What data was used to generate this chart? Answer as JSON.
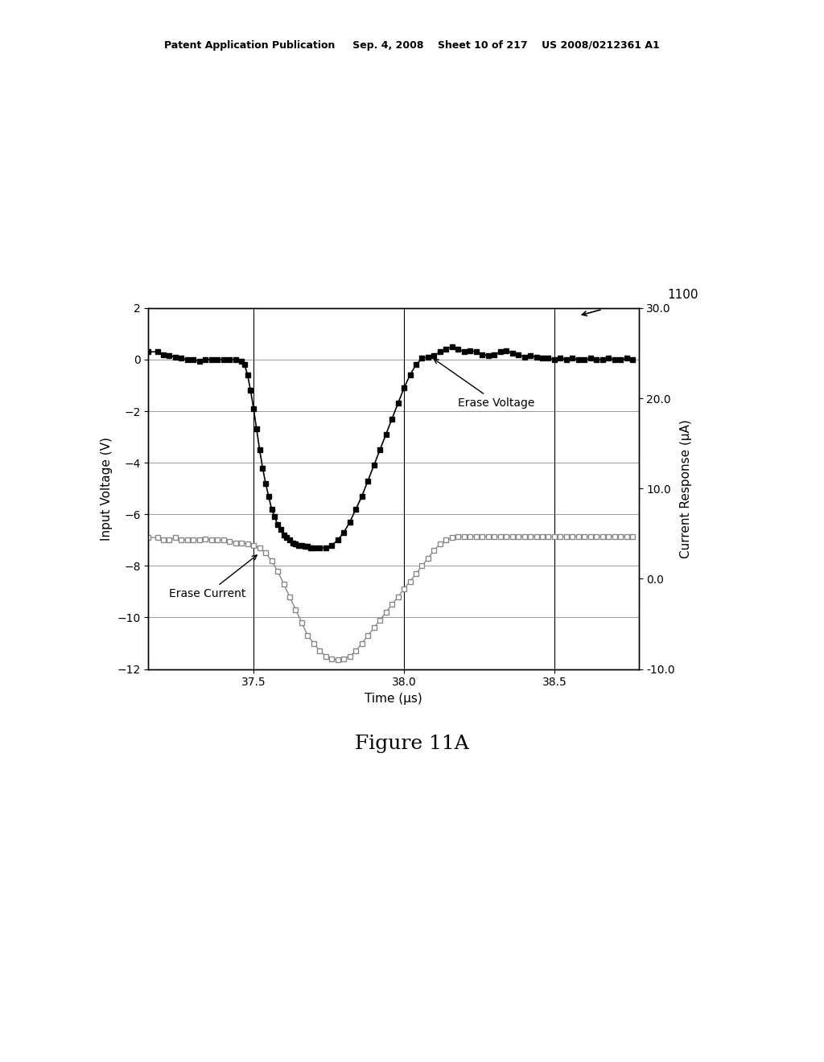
{
  "title_header": "Patent Application Publication     Sep. 4, 2008    Sheet 10 of 217    US 2008/0212361 A1",
  "figure_label": "Figure 11A",
  "ref_number": "1100",
  "xlabel": "Time (μs)",
  "ylabel_left": "Input Voltage (V)",
  "ylabel_right": "Current Response (μA)",
  "xlim": [
    37.15,
    38.78
  ],
  "ylim_left": [
    -12,
    2
  ],
  "ylim_right": [
    -10.0,
    30.0
  ],
  "xticks": [
    37.5,
    38.0,
    38.5
  ],
  "yticks_left": [
    -12,
    -10,
    -8,
    -6,
    -4,
    -2,
    0,
    2
  ],
  "yticks_right": [
    -10.0,
    0.0,
    10.0,
    20.0,
    30.0
  ],
  "annotation_erase_voltage": "Erase Voltage",
  "annotation_erase_current": "Erase Current",
  "bg_color": "#ffffff",
  "line_color_voltage": "#000000",
  "line_color_current": "#888888",
  "grid_color": "#999999",
  "vline_color": "#000000",
  "voltage_x": [
    37.15,
    37.18,
    37.2,
    37.22,
    37.24,
    37.26,
    37.28,
    37.3,
    37.32,
    37.34,
    37.36,
    37.38,
    37.4,
    37.42,
    37.44,
    37.46,
    37.47,
    37.48,
    37.49,
    37.5,
    37.51,
    37.52,
    37.53,
    37.54,
    37.55,
    37.56,
    37.57,
    37.58,
    37.59,
    37.6,
    37.61,
    37.62,
    37.63,
    37.64,
    37.65,
    37.66,
    37.67,
    37.68,
    37.69,
    37.7,
    37.72,
    37.74,
    37.76,
    37.78,
    37.8,
    37.82,
    37.84,
    37.86,
    37.88,
    37.9,
    37.92,
    37.94,
    37.96,
    37.98,
    38.0,
    38.02,
    38.04,
    38.06,
    38.08,
    38.1,
    38.12,
    38.14,
    38.16,
    38.18,
    38.2,
    38.22,
    38.24,
    38.26,
    38.28,
    38.3,
    38.32,
    38.34,
    38.36,
    38.38,
    38.4,
    38.42,
    38.44,
    38.46,
    38.48,
    38.5,
    38.52,
    38.54,
    38.56,
    38.58,
    38.6,
    38.62,
    38.64,
    38.66,
    38.68,
    38.7,
    38.72,
    38.74,
    38.76
  ],
  "voltage_y": [
    0.3,
    0.3,
    0.2,
    0.15,
    0.1,
    0.05,
    0.0,
    0.0,
    -0.05,
    0.0,
    0.0,
    0.0,
    0.0,
    0.0,
    0.0,
    -0.05,
    -0.2,
    -0.6,
    -1.2,
    -1.9,
    -2.7,
    -3.5,
    -4.2,
    -4.8,
    -5.3,
    -5.8,
    -6.1,
    -6.4,
    -6.6,
    -6.8,
    -6.9,
    -7.0,
    -7.1,
    -7.15,
    -7.2,
    -7.2,
    -7.25,
    -7.25,
    -7.3,
    -7.3,
    -7.3,
    -7.3,
    -7.2,
    -7.0,
    -6.7,
    -6.3,
    -5.8,
    -5.3,
    -4.7,
    -4.1,
    -3.5,
    -2.9,
    -2.3,
    -1.7,
    -1.1,
    -0.6,
    -0.2,
    0.05,
    0.1,
    0.15,
    0.3,
    0.4,
    0.5,
    0.4,
    0.3,
    0.35,
    0.3,
    0.2,
    0.15,
    0.2,
    0.3,
    0.35,
    0.25,
    0.2,
    0.1,
    0.15,
    0.1,
    0.05,
    0.05,
    0.0,
    0.05,
    0.0,
    0.05,
    0.0,
    0.0,
    0.05,
    0.0,
    0.0,
    0.05,
    0.0,
    0.0,
    0.05,
    0.0
  ],
  "current_x": [
    37.15,
    37.18,
    37.2,
    37.22,
    37.24,
    37.26,
    37.28,
    37.3,
    37.32,
    37.34,
    37.36,
    37.38,
    37.4,
    37.42,
    37.44,
    37.46,
    37.48,
    37.5,
    37.52,
    37.54,
    37.56,
    37.58,
    37.6,
    37.62,
    37.64,
    37.66,
    37.68,
    37.7,
    37.72,
    37.74,
    37.76,
    37.78,
    37.8,
    37.82,
    37.84,
    37.86,
    37.88,
    37.9,
    37.92,
    37.94,
    37.96,
    37.98,
    38.0,
    38.02,
    38.04,
    38.06,
    38.08,
    38.1,
    38.12,
    38.14,
    38.16,
    38.18,
    38.2,
    38.22,
    38.24,
    38.26,
    38.28,
    38.3,
    38.32,
    38.34,
    38.36,
    38.38,
    38.4,
    38.42,
    38.44,
    38.46,
    38.48,
    38.5,
    38.52,
    38.54,
    38.56,
    38.58,
    38.6,
    38.62,
    38.64,
    38.66,
    38.68,
    38.7,
    38.72,
    38.74,
    38.76
  ],
  "current_y": [
    -6.9,
    -6.9,
    -7.0,
    -7.0,
    -6.9,
    -7.0,
    -7.0,
    -7.0,
    -7.0,
    -6.95,
    -7.0,
    -7.0,
    -7.0,
    -7.05,
    -7.1,
    -7.1,
    -7.15,
    -7.2,
    -7.3,
    -7.5,
    -7.8,
    -8.2,
    -8.7,
    -9.2,
    -9.7,
    -10.2,
    -10.7,
    -11.0,
    -11.3,
    -11.5,
    -11.6,
    -11.65,
    -11.6,
    -11.5,
    -11.3,
    -11.0,
    -10.7,
    -10.4,
    -10.1,
    -9.8,
    -9.5,
    -9.2,
    -8.9,
    -8.6,
    -8.3,
    -8.0,
    -7.7,
    -7.4,
    -7.15,
    -7.0,
    -6.9,
    -6.85,
    -6.85,
    -6.85,
    -6.85,
    -6.85,
    -6.85,
    -6.85,
    -6.85,
    -6.85,
    -6.85,
    -6.85,
    -6.85,
    -6.85,
    -6.85,
    -6.85,
    -6.85,
    -6.85,
    -6.85,
    -6.85,
    -6.85,
    -6.85,
    -6.85,
    -6.85,
    -6.85,
    -6.85,
    -6.85,
    -6.85,
    -6.85,
    -6.85,
    -6.85
  ]
}
